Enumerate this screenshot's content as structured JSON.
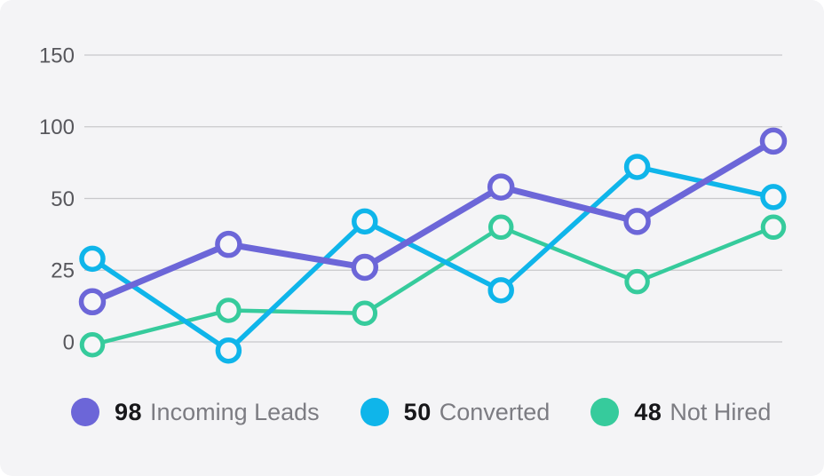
{
  "chart_data": {
    "type": "line",
    "title": "",
    "xlabel": "",
    "ylabel": "",
    "x_axis": {
      "labels": [],
      "point_count": 6
    },
    "y_axis": {
      "ticks": [
        0,
        25,
        50,
        100,
        150
      ],
      "tick_labels": [
        "0",
        "25",
        "50",
        "100",
        "150"
      ],
      "tick_spacing": "uniform-pixel",
      "note": "tick labels are non-linear values on evenly spaced gridlines"
    },
    "grid": true,
    "legend_position": "bottom",
    "series": [
      {
        "name": "Incoming Leads",
        "legend_value": "98",
        "color": "#6C66D8",
        "marker": "circle",
        "line_width": 7,
        "marker_radius": 12.5,
        "marker_stroke": 5.5,
        "values": [
          14,
          34,
          26,
          58,
          42,
          90
        ]
      },
      {
        "name": "Converted",
        "legend_value": "50",
        "color": "#0FB5EA",
        "marker": "circle",
        "line_width": 5.5,
        "marker_radius": 12,
        "marker_stroke": 5.5,
        "values": [
          29,
          -3,
          42,
          18,
          72,
          51
        ]
      },
      {
        "name": "Not Hired",
        "legend_value": "48",
        "color": "#36CB9C",
        "marker": "circle",
        "line_width": 4.5,
        "marker_radius": 11.75,
        "marker_stroke": 5,
        "values": [
          -1,
          11,
          10,
          40,
          21,
          40
        ]
      }
    ],
    "style": {
      "card_background": "#F4F4F6",
      "grid_color": "#C8C8CB",
      "tick_label_color": "#57575C",
      "marker_fill": "#F6F6F8",
      "legend_value_color": "#17171A",
      "legend_label_color": "#7C7C82"
    }
  }
}
